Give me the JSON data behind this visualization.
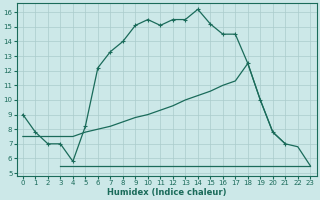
{
  "xlabel": "Humidex (Indice chaleur)",
  "bg_color": "#cce8e8",
  "grid_color": "#aacccc",
  "line_color": "#1a6b5a",
  "xlim": [
    -0.5,
    23.5
  ],
  "ylim": [
    4.8,
    16.6
  ],
  "xticks": [
    0,
    1,
    2,
    3,
    4,
    5,
    6,
    7,
    8,
    9,
    10,
    11,
    12,
    13,
    14,
    15,
    16,
    17,
    18,
    19,
    20,
    21,
    22,
    23
  ],
  "yticks": [
    5,
    6,
    7,
    8,
    9,
    10,
    11,
    12,
    13,
    14,
    15,
    16
  ],
  "line1_x": [
    0,
    1,
    2,
    3,
    4,
    5,
    6,
    7,
    8,
    9,
    10,
    11,
    12,
    13,
    14,
    15,
    16,
    17,
    18,
    19,
    20,
    21
  ],
  "line1_y": [
    9.0,
    7.8,
    7.0,
    7.0,
    5.8,
    8.2,
    12.2,
    13.3,
    14.0,
    15.1,
    15.5,
    15.1,
    15.5,
    15.5,
    16.2,
    15.2,
    14.5,
    14.5,
    12.5,
    10.0,
    7.8,
    7.0
  ],
  "line2_x": [
    0,
    1,
    2,
    3,
    4,
    5,
    6,
    7,
    8,
    9,
    10,
    11,
    12,
    13,
    14,
    15,
    16,
    17,
    18,
    19,
    20,
    21,
    22,
    23
  ],
  "line2_y": [
    7.5,
    7.5,
    7.5,
    7.5,
    7.5,
    7.8,
    8.0,
    8.2,
    8.5,
    8.8,
    9.0,
    9.3,
    9.6,
    10.0,
    10.3,
    10.6,
    11.0,
    11.3,
    12.5,
    10.0,
    7.8,
    7.0,
    6.8,
    5.5
  ],
  "line3_x": [
    3,
    4,
    5,
    6,
    7,
    8,
    9,
    10,
    11,
    12,
    13,
    14,
    15,
    16,
    17,
    18,
    19,
    20,
    21,
    22,
    23
  ],
  "line3_y": [
    5.5,
    5.5,
    5.5,
    5.5,
    5.5,
    5.5,
    5.5,
    5.5,
    5.5,
    5.5,
    5.5,
    5.5,
    5.5,
    5.5,
    5.5,
    5.5,
    5.5,
    5.5,
    5.5,
    5.5,
    5.5
  ]
}
